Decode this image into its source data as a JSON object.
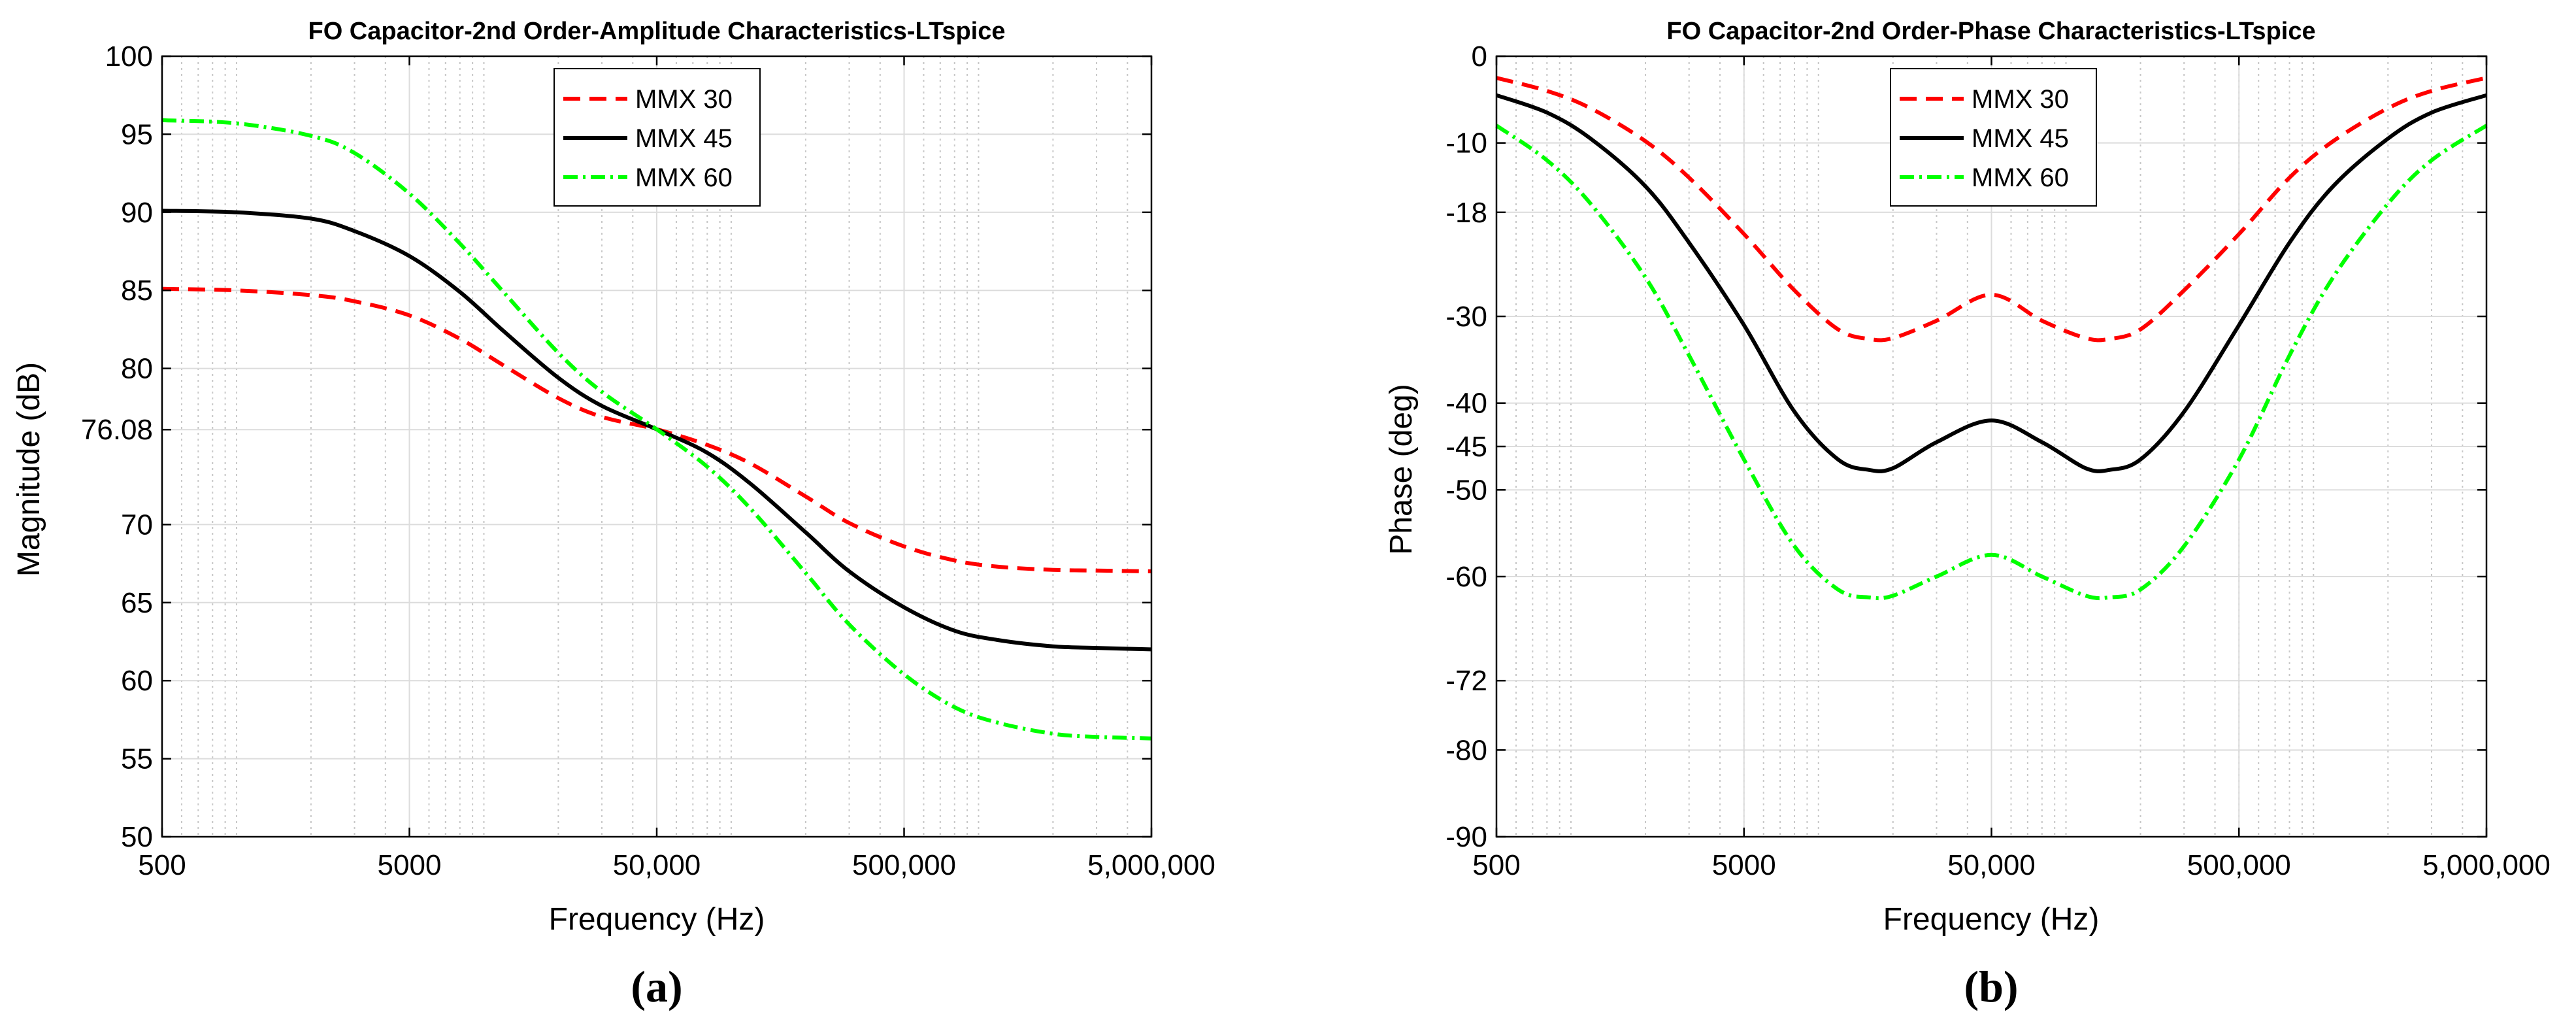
{
  "chart_data": [
    {
      "id": "a",
      "type": "line",
      "title": "FO Capacitor-2nd Order-Amplitude Characteristics-LTspice",
      "xlabel": "Frequency (Hz)",
      "ylabel": "Magnitude (dB)",
      "caption": "(a)",
      "xscale": "log",
      "xlim": [
        500,
        5000000
      ],
      "ylim": [
        50,
        100
      ],
      "grid": true,
      "legend_position": "top-center",
      "xticks": [
        500,
        5000,
        50000,
        500000,
        5000000
      ],
      "xtick_labels": [
        "500",
        "5000",
        "50,000",
        "500,000",
        "5,000,000"
      ],
      "yticks": [
        50,
        55,
        60,
        65,
        70,
        76.08,
        80,
        85,
        90,
        95,
        100
      ],
      "ytick_labels": [
        "50",
        "55",
        "60",
        "65",
        "70",
        "76.08",
        "80",
        "85",
        "90",
        "95",
        "100"
      ],
      "series": [
        {
          "name": "MMX 30",
          "color": "#ff0000",
          "dash": "dashed",
          "x": [
            500,
            1000,
            2000,
            3000,
            5000,
            8000,
            12000,
            20000,
            30000,
            50000,
            80000,
            120000,
            200000,
            300000,
            500000,
            800000,
            1200000,
            2000000,
            3000000,
            5000000
          ],
          "values": [
            85.1,
            85.0,
            84.7,
            84.3,
            83.4,
            81.9,
            80.2,
            78.1,
            76.9,
            76.1,
            75.1,
            73.9,
            71.8,
            70.1,
            68.6,
            67.7,
            67.3,
            67.1,
            67.05,
            67.0
          ]
        },
        {
          "name": "MMX 45",
          "color": "#000000",
          "dash": "solid",
          "x": [
            500,
            1000,
            2000,
            3000,
            5000,
            8000,
            12000,
            20000,
            30000,
            50000,
            80000,
            120000,
            200000,
            300000,
            500000,
            800000,
            1200000,
            2000000,
            3000000,
            5000000
          ],
          "values": [
            90.1,
            90.0,
            89.6,
            88.8,
            87.2,
            84.9,
            82.4,
            79.4,
            77.6,
            76.1,
            74.6,
            72.6,
            69.5,
            67.0,
            64.7,
            63.2,
            62.6,
            62.2,
            62.1,
            62.0
          ]
        },
        {
          "name": "MMX 60",
          "color": "#00ff00",
          "dash": "dashdot",
          "x": [
            500,
            1000,
            2000,
            3000,
            5000,
            8000,
            12000,
            20000,
            30000,
            50000,
            80000,
            120000,
            200000,
            300000,
            500000,
            800000,
            1200000,
            2000000,
            3000000,
            5000000
          ],
          "values": [
            95.9,
            95.7,
            94.9,
            93.8,
            91.2,
            88.0,
            84.9,
            81.0,
            78.5,
            76.1,
            73.7,
            71.0,
            66.9,
            63.6,
            60.4,
            58.3,
            57.3,
            56.6,
            56.4,
            56.3
          ]
        }
      ]
    },
    {
      "id": "b",
      "type": "line",
      "title": "FO Capacitor-2nd Order-Phase Characteristics-LTspice",
      "xlabel": "Frequency (Hz)",
      "ylabel": "Phase (deg)",
      "caption": "(b)",
      "xscale": "log",
      "xlim": [
        500,
        5000000
      ],
      "ylim": [
        -90,
        0
      ],
      "grid": true,
      "legend_position": "top-center",
      "xticks": [
        500,
        5000,
        50000,
        500000,
        5000000
      ],
      "xtick_labels": [
        "500",
        "5000",
        "50,000",
        "500,000",
        "5,000,000"
      ],
      "yticks": [
        -90,
        -80,
        -72,
        -60,
        -50,
        -45,
        -40,
        -30,
        -18,
        -10,
        0
      ],
      "ytick_labels": [
        "-90",
        "-80",
        "-72",
        "-60",
        "-50",
        "-45",
        "-40",
        "-30",
        "-18",
        "-10",
        "0"
      ],
      "series": [
        {
          "name": "MMX 30",
          "color": "#ff0000",
          "dash": "dashed",
          "x": [
            500,
            800,
            1200,
            2000,
            3000,
            5000,
            8000,
            12000,
            16000,
            20000,
            30000,
            50000,
            80000,
            120000,
            150000,
            200000,
            300000,
            500000,
            800000,
            1200000,
            2000000,
            3000000,
            5000000
          ],
          "values": [
            -2.5,
            -4.0,
            -6.0,
            -9.8,
            -14.0,
            -20.5,
            -27.0,
            -31.5,
            -32.6,
            -32.5,
            -30.5,
            -27.5,
            -30.5,
            -32.5,
            -32.6,
            -31.5,
            -27.0,
            -20.5,
            -14.0,
            -9.8,
            -6.0,
            -4.0,
            -2.5
          ]
        },
        {
          "name": "MMX 45",
          "color": "#000000",
          "dash": "solid",
          "x": [
            500,
            800,
            1200,
            2000,
            3000,
            5000,
            8000,
            12000,
            16000,
            20000,
            30000,
            50000,
            80000,
            120000,
            150000,
            200000,
            300000,
            500000,
            800000,
            1200000,
            2000000,
            3000000,
            5000000
          ],
          "values": [
            -4.5,
            -6.5,
            -9.5,
            -15.0,
            -21.5,
            -31.0,
            -41.0,
            -46.5,
            -47.7,
            -47.5,
            -44.5,
            -42.0,
            -44.5,
            -47.5,
            -47.7,
            -46.5,
            -41.0,
            -31.0,
            -21.5,
            -15.0,
            -9.5,
            -6.5,
            -4.5
          ]
        },
        {
          "name": "MMX 60",
          "color": "#00ff00",
          "dash": "dashdot",
          "x": [
            500,
            800,
            1200,
            2000,
            3000,
            5000,
            8000,
            12000,
            16000,
            20000,
            30000,
            50000,
            80000,
            120000,
            150000,
            200000,
            300000,
            500000,
            800000,
            1200000,
            2000000,
            3000000,
            5000000
          ],
          "values": [
            -8.0,
            -12.0,
            -17.0,
            -25.5,
            -34.5,
            -46.5,
            -56.5,
            -61.5,
            -62.4,
            -62.2,
            -60.0,
            -57.5,
            -60.0,
            -62.2,
            -62.4,
            -61.5,
            -56.5,
            -46.5,
            -34.5,
            -25.5,
            -17.0,
            -12.0,
            -8.0
          ]
        }
      ]
    }
  ]
}
